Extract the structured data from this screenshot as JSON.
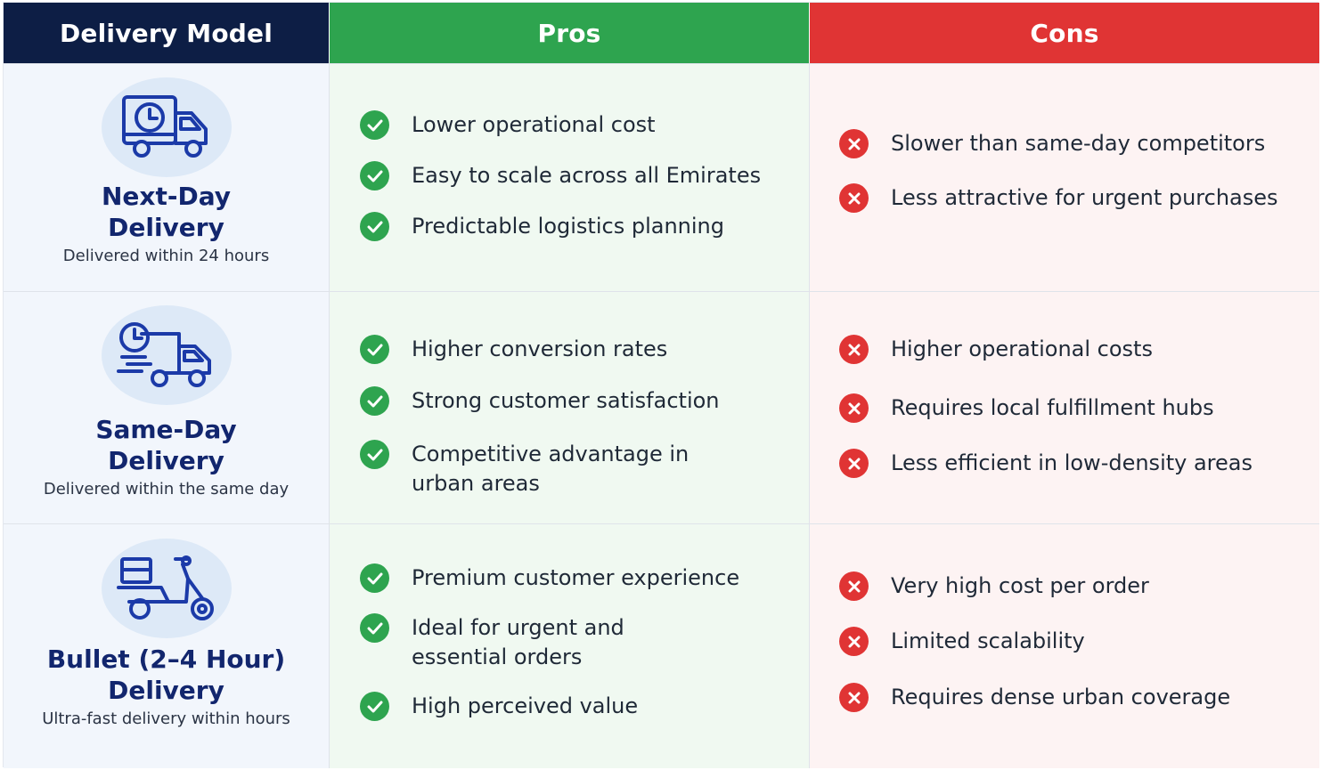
{
  "headers": {
    "model": "Delivery Model",
    "pros": "Pros",
    "cons": "Cons"
  },
  "rows": [
    {
      "icon": "truck-clock-icon",
      "title_line1": "Next-Day",
      "title_line2": "Delivery",
      "subtitle": "Delivered within 24 hours",
      "pros": [
        "Lower operational cost",
        "Easy to scale across all Emirates",
        "Predictable logistics planning"
      ],
      "cons": [
        "Slower than same-day competitors",
        "Less attractive for urgent purchases"
      ]
    },
    {
      "icon": "fast-truck-clock-icon",
      "title_line1": "Same-Day",
      "title_line2": "Delivery",
      "subtitle": "Delivered within the same day",
      "pros": [
        "Higher conversion rates",
        "Strong customer satisfaction",
        "Competitive advantage in",
        "urban areas"
      ],
      "cons": [
        "Higher operational costs",
        "Requires local fulfillment hubs",
        "Less efficient in low-density areas"
      ]
    },
    {
      "icon": "scooter-icon",
      "title_line1": "Bullet (2–4 Hour)",
      "title_line2": "Delivery",
      "subtitle": "Ultra-fast delivery within hours",
      "pros": [
        "Premium customer experience",
        "Ideal for urgent and",
        "essential orders",
        "High perceived value"
      ],
      "cons": [
        "Very high cost per order",
        "Limited scalability",
        "Requires dense urban coverage"
      ]
    }
  ],
  "colors": {
    "header_model": "#0d1e45",
    "header_pros": "#2ea44f",
    "header_cons": "#e03434",
    "title": "#12266e"
  }
}
